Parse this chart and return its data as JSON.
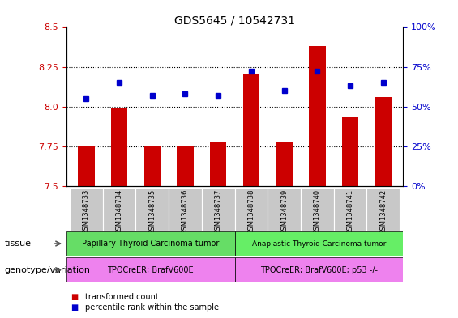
{
  "title": "GDS5645 / 10542731",
  "samples": [
    "GSM1348733",
    "GSM1348734",
    "GSM1348735",
    "GSM1348736",
    "GSM1348737",
    "GSM1348738",
    "GSM1348739",
    "GSM1348740",
    "GSM1348741",
    "GSM1348742"
  ],
  "transformed_count": [
    7.75,
    7.99,
    7.75,
    7.75,
    7.78,
    8.2,
    7.78,
    8.38,
    7.93,
    8.06
  ],
  "percentile_rank": [
    55,
    65,
    57,
    58,
    57,
    72,
    60,
    72,
    63,
    65
  ],
  "ylim_left": [
    7.5,
    8.5
  ],
  "ylim_right": [
    0,
    100
  ],
  "yticks_left": [
    7.5,
    7.75,
    8.0,
    8.25,
    8.5
  ],
  "yticks_right": [
    0,
    25,
    50,
    75,
    100
  ],
  "ytick_labels_right": [
    "0%",
    "25%",
    "50%",
    "75%",
    "100%"
  ],
  "hlines": [
    7.75,
    8.0,
    8.25
  ],
  "bar_color": "#cc0000",
  "dot_color": "#0000cc",
  "bar_width": 0.5,
  "tissue_groups": [
    {
      "label": "Papillary Thyroid Carcinoma tumor",
      "start": 0,
      "end": 5,
      "color": "#66dd66"
    },
    {
      "label": "Anaplastic Thyroid Carcinoma tumor",
      "start": 5,
      "end": 10,
      "color": "#66ee66"
    }
  ],
  "genotype_groups": [
    {
      "label": "TPOCreER; BrafV600E",
      "start": 0,
      "end": 5,
      "color": "#ee82ee"
    },
    {
      "label": "TPOCreER; BrafV600E; p53 -/-",
      "start": 5,
      "end": 10,
      "color": "#ee82ee"
    }
  ],
  "tissue_row_label": "tissue",
  "genotype_row_label": "genotype/variation",
  "legend_items": [
    {
      "label": "transformed count",
      "color": "#cc0000"
    },
    {
      "label": "percentile rank within the sample",
      "color": "#0000cc"
    }
  ],
  "background_color": "#ffffff",
  "sample_bg_color": "#c8c8c8",
  "title_fontsize": 10,
  "axis_fontsize": 8,
  "label_fontsize": 8,
  "tick_fontsize": 7.5
}
